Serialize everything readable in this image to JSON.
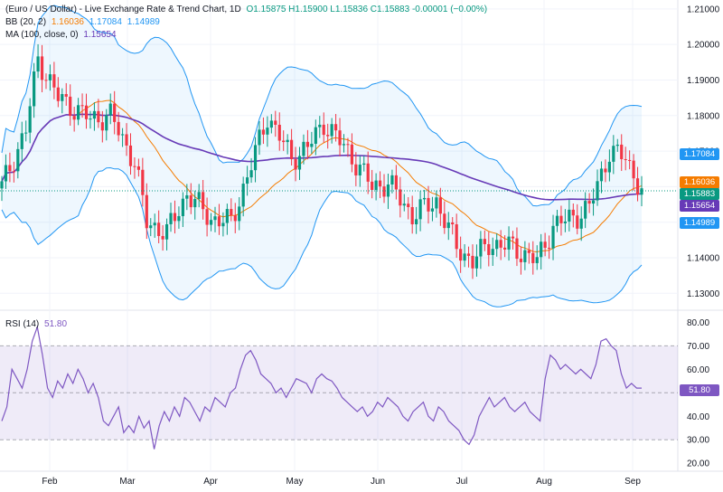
{
  "header": {
    "title": "(Euro / US Dollar) - Live Exchange Rate & Trend Chart, 1D",
    "ohlc": "O1.15875  H1.15900  L1.15836  C1.15883  -0.00001 (−0.00%)",
    "bb_label": "BB (20, 2)",
    "bb_basis": "1.16036",
    "bb_upper": "1.17084",
    "bb_lower": "1.14989",
    "ma_label": "MA (100, close, 0)",
    "ma_value": "1.15654",
    "rsi_label": "RSI (14)",
    "rsi_value": "51.80"
  },
  "price_tags": {
    "bb_upper": "1.17084",
    "bb_basis": "1.16036",
    "close": "1.15883",
    "ma": "1.15654",
    "bb_lower": "1.14989",
    "rsi": "51.80"
  },
  "colors": {
    "up": "#089981",
    "down": "#f23645",
    "bb_basis": "#f57c00",
    "bb_band": "#2196f3",
    "ma": "#673ab7",
    "rsi": "#7e57c2"
  },
  "chart_data": {
    "type": "candlestick",
    "price_axis": {
      "ticks": [
        "1.21000",
        "1.20000",
        "1.19000",
        "1.18000",
        "1.17000",
        "1.16000",
        "1.15000",
        "1.14000",
        "1.13000"
      ],
      "ylim": [
        1.1255,
        1.2125
      ]
    },
    "rsi_axis": {
      "ticks": [
        "80.00",
        "70.00",
        "60.00",
        "50.00",
        "40.00",
        "30.00",
        "20.00"
      ],
      "ylim": [
        17,
        84
      ],
      "bands": [
        30,
        50,
        70
      ]
    },
    "x_axis": {
      "ticks": [
        "Feb",
        "Mar",
        "Apr",
        "May",
        "Jun",
        "Jul",
        "Aug",
        "Sep"
      ]
    },
    "rsi": [
      38,
      44,
      60,
      56,
      52,
      60,
      72,
      78,
      66,
      52,
      48,
      55,
      52,
      58,
      54,
      60,
      56,
      50,
      54,
      48,
      38,
      36,
      40,
      44,
      33,
      36,
      33,
      40,
      35,
      38,
      26,
      36,
      42,
      38,
      44,
      40,
      48,
      46,
      42,
      38,
      44,
      42,
      48,
      46,
      44,
      50,
      52,
      60,
      66,
      68,
      64,
      58,
      56,
      54,
      50,
      52,
      48,
      52,
      56,
      55,
      54,
      50,
      56,
      58,
      56,
      55,
      52,
      48,
      46,
      44,
      42,
      44,
      40,
      42,
      46,
      44,
      48,
      46,
      44,
      40,
      38,
      42,
      44,
      46,
      40,
      38,
      44,
      42,
      38,
      36,
      34,
      30,
      28,
      32,
      40,
      44,
      48,
      44,
      46,
      48,
      44,
      42,
      44,
      46,
      42,
      40,
      38,
      56,
      66,
      64,
      60,
      62,
      60,
      58,
      60,
      58,
      56,
      62,
      72,
      73,
      70,
      68,
      58,
      52,
      54,
      52,
      52
    ]
  }
}
